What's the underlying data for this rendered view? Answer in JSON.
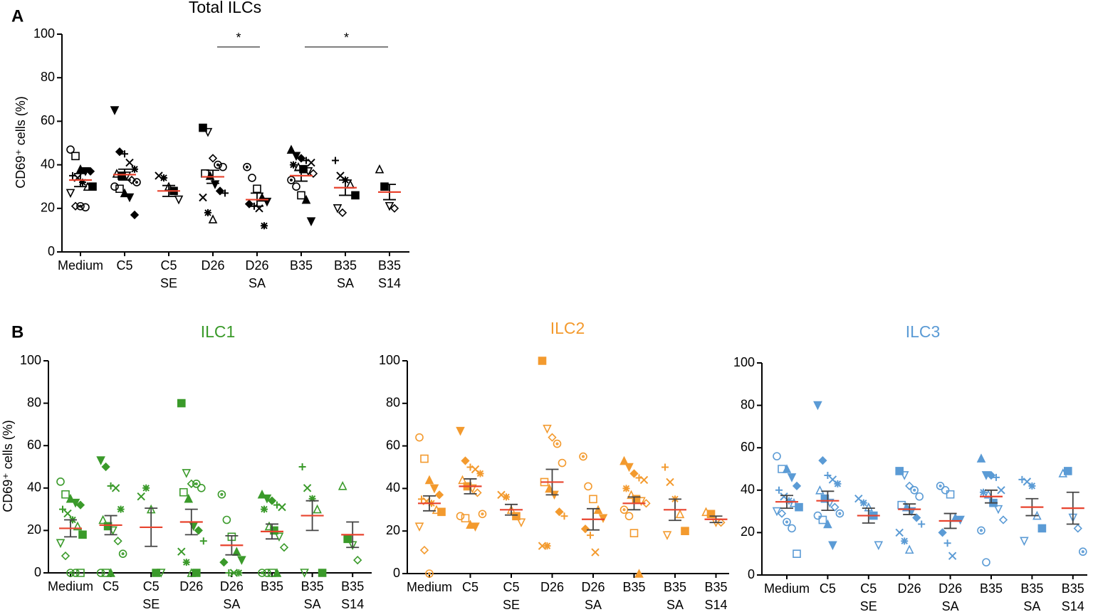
{
  "panels": [
    "A",
    "B"
  ],
  "chart_data": [
    {
      "type": "dot",
      "title": "Total ILCs",
      "ylabel": "CD69⁺ cells (%)",
      "categories": [
        [
          "Medium"
        ],
        [
          "C5"
        ],
        [
          "C5",
          "SE"
        ],
        [
          "D26"
        ],
        [
          "D26",
          "SA"
        ],
        [
          "B35"
        ],
        [
          "B35",
          "SA"
        ],
        [
          "B35",
          "S14"
        ]
      ],
      "means": [
        33,
        35.5,
        28,
        34.5,
        24,
        35,
        29.5,
        27.5
      ],
      "sems": [
        3,
        2.5,
        2.5,
        3,
        3,
        2.5,
        3.5,
        3.5
      ],
      "points": [
        [
          47,
          44,
          38,
          37,
          37,
          35,
          34,
          32,
          30,
          30,
          27,
          21,
          21,
          20.5
        ],
        [
          65,
          46,
          45,
          41,
          38,
          36,
          35,
          35,
          33,
          32,
          30,
          29,
          27,
          25,
          17
        ],
        [
          35,
          34,
          30,
          28,
          24
        ],
        [
          57,
          55,
          43,
          40,
          39,
          36,
          35,
          31,
          28,
          27,
          25,
          18,
          15
        ],
        [
          39,
          34,
          29,
          25,
          23,
          22,
          21,
          20,
          12
        ],
        [
          47,
          44,
          43,
          42,
          41,
          40,
          39,
          38,
          37,
          36,
          33,
          30,
          26,
          24,
          14
        ],
        [
          42,
          35,
          33,
          31,
          26,
          20,
          18
        ],
        [
          38,
          30,
          21,
          20
        ]
      ],
      "annotations": [
        {
          "text": "*"
        },
        {
          "text": "*"
        }
      ],
      "color": "#000000",
      "title_color": "#000000",
      "mean_color": "#e8432e",
      "error_color": "#000000",
      "ylim": [
        0,
        100
      ],
      "yticks": [
        0,
        20,
        40,
        60,
        80,
        100
      ]
    },
    {
      "type": "dot",
      "title": "ILC1",
      "ylabel": "CD69⁺ cells (%)",
      "categories": [
        [
          "Medium"
        ],
        [
          "C5"
        ],
        [
          "C5",
          "SE"
        ],
        [
          "D26"
        ],
        [
          "D26",
          "SA"
        ],
        [
          "B35"
        ],
        [
          "B35",
          "SA"
        ],
        [
          "B35",
          "S14"
        ]
      ],
      "means": [
        21,
        22.5,
        21.5,
        24,
        13,
        19.5,
        27,
        18
      ],
      "sems": [
        4,
        4.5,
        9,
        6,
        4.5,
        3.5,
        7,
        6
      ],
      "points": [
        [
          43,
          37,
          35,
          33,
          32,
          30,
          28,
          25,
          22,
          18,
          14,
          8,
          0,
          0,
          0
        ],
        [
          53,
          50,
          41,
          40,
          30,
          25,
          22,
          20,
          15,
          9,
          0,
          0,
          0
        ],
        [
          36,
          40,
          30,
          0,
          0
        ],
        [
          80,
          47,
          42,
          42,
          40,
          38,
          35,
          22,
          20,
          15,
          10,
          5,
          0,
          0
        ],
        [
          37,
          25,
          17,
          10,
          6,
          5,
          0,
          0,
          0
        ],
        [
          37,
          35,
          34,
          32,
          31,
          30,
          22,
          20,
          17,
          12,
          0,
          0,
          0,
          0
        ],
        [
          50,
          40,
          35,
          30,
          0,
          0
        ],
        [
          41,
          16,
          13,
          6
        ]
      ],
      "color": "#3a9a2a",
      "title_color": "#3a9a2a",
      "mean_color": "#e8432e",
      "error_color": "#444444",
      "ylim": [
        0,
        100
      ],
      "yticks": [
        0,
        20,
        40,
        60,
        80,
        100
      ]
    },
    {
      "type": "dot",
      "title": "ILC2",
      "categories": [
        [
          "Medium"
        ],
        [
          "C5"
        ],
        [
          "C5",
          "SE"
        ],
        [
          "D26"
        ],
        [
          "D26",
          "SA"
        ],
        [
          "B35"
        ],
        [
          "B35",
          "SA"
        ],
        [
          "B35",
          "S14"
        ]
      ],
      "means": [
        33,
        41,
        30,
        43,
        25.5,
        33,
        30,
        25.5
      ],
      "sems": [
        3.5,
        3.5,
        2.5,
        6,
        5,
        3,
        5,
        1.5
      ],
      "points": [
        [
          64,
          54,
          44,
          40,
          37,
          35,
          34,
          33,
          30,
          29,
          22,
          11,
          0
        ],
        [
          67,
          53,
          50,
          49,
          47,
          44,
          41,
          40,
          38,
          28,
          27,
          26,
          23,
          22
        ],
        [
          37,
          36,
          30,
          27,
          24
        ],
        [
          100,
          68,
          64,
          61,
          52,
          43,
          40,
          37,
          29,
          27,
          13,
          13
        ],
        [
          55,
          41,
          35,
          30,
          26,
          21,
          18,
          10
        ],
        [
          53,
          50,
          47,
          45,
          44,
          40,
          37,
          35,
          34,
          33,
          30,
          27,
          19,
          0
        ],
        [
          50,
          43,
          35,
          28,
          20,
          18
        ],
        [
          29,
          28,
          24,
          24
        ]
      ],
      "color": "#f39a2e",
      "title_color": "#f39a2e",
      "mean_color": "#e8432e",
      "error_color": "#444444",
      "ylim": [
        0,
        100
      ],
      "yticks": [
        0,
        20,
        40,
        60,
        80,
        100
      ]
    },
    {
      "type": "dot",
      "title": "ILC3",
      "categories": [
        [
          "Medium"
        ],
        [
          "C5"
        ],
        [
          "C5",
          "SE"
        ],
        [
          "D26"
        ],
        [
          "D26",
          "SA"
        ],
        [
          "B35"
        ],
        [
          "B35",
          "SA"
        ],
        [
          "B35",
          "S14"
        ]
      ],
      "means": [
        34.5,
        35,
        28,
        31,
        25.5,
        37,
        32,
        31.5
      ],
      "sems": [
        3,
        4.5,
        3.5,
        2.5,
        3.5,
        3,
        4,
        7.5
      ],
      "points": [
        [
          56,
          50,
          50,
          46,
          42,
          40,
          37,
          35,
          34,
          32,
          30,
          29,
          25,
          22,
          10
        ],
        [
          80,
          54,
          47,
          45,
          43,
          40,
          36,
          34,
          32,
          29,
          28,
          26,
          24,
          14
        ],
        [
          36,
          34,
          32,
          28,
          14
        ],
        [
          49,
          47,
          42,
          40,
          37,
          33,
          32,
          30,
          27,
          24,
          20,
          16,
          12
        ],
        [
          42,
          40,
          38,
          27,
          26,
          20,
          15,
          9
        ],
        [
          55,
          47,
          47,
          46,
          40,
          39,
          38,
          34,
          31,
          26,
          21,
          6
        ],
        [
          45,
          44,
          42,
          28,
          22,
          16
        ],
        [
          48,
          49,
          27,
          22,
          11
        ]
      ],
      "color": "#5b9bd5",
      "title_color": "#5b9bd5",
      "mean_color": "#e8432e",
      "error_color": "#444444",
      "ylim": [
        0,
        100
      ],
      "yticks": [
        0,
        20,
        40,
        60,
        80,
        100
      ]
    }
  ]
}
